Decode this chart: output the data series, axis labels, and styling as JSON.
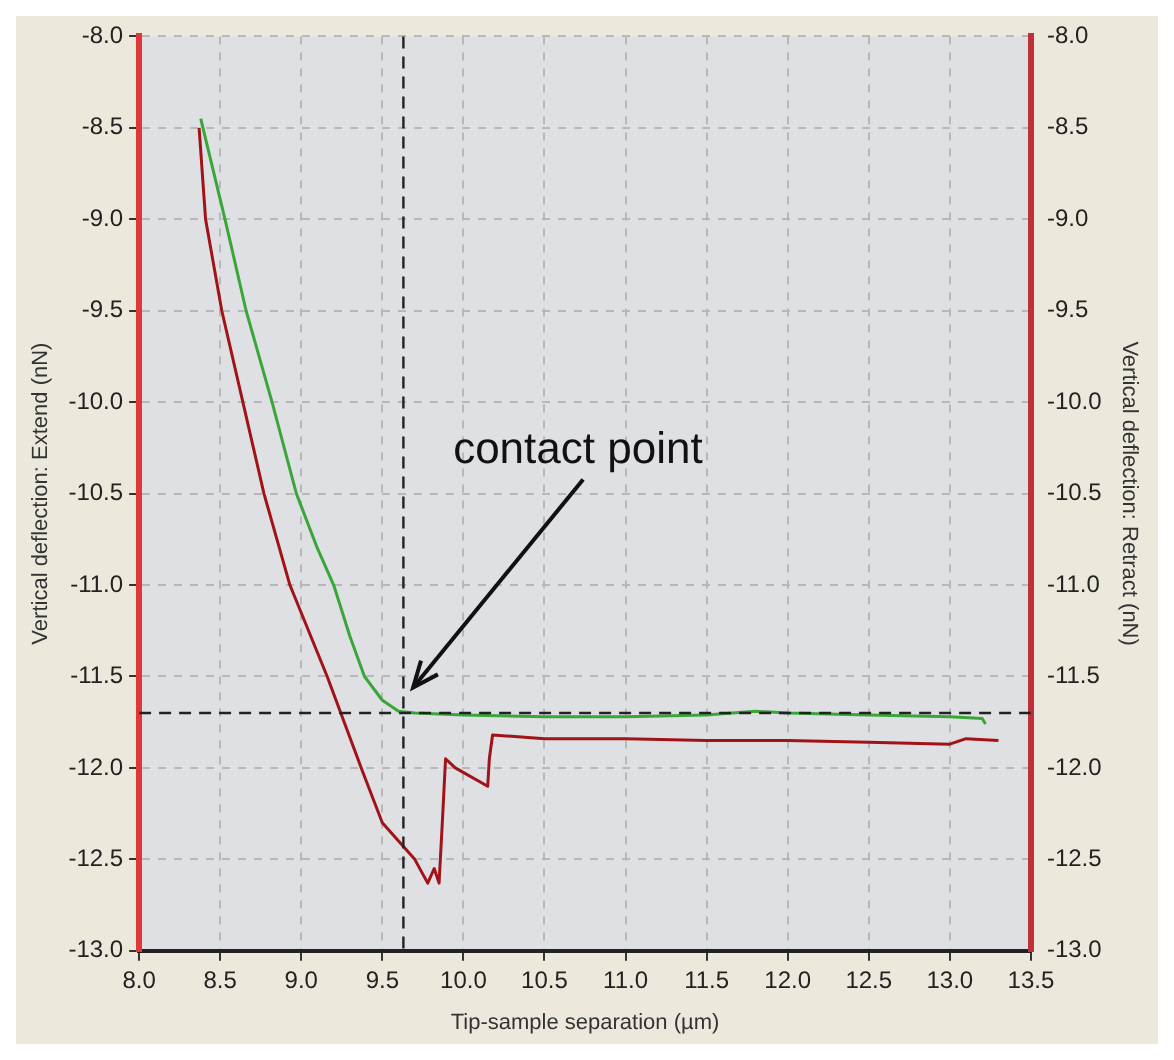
{
  "chart_data": {
    "type": "line",
    "xlabel": "Tip-sample separation (µm)",
    "ylabel": "Vertical deflection: Extend (nN)",
    "y2label": "Vertical deflection: Retract (nN)",
    "series": [
      {
        "color": "#3aa63a",
        "x": [
          8.38,
          8.53,
          8.66,
          8.82,
          8.97,
          9.1,
          9.2,
          9.3,
          9.39,
          9.5,
          9.6,
          9.7,
          10.0,
          10.5,
          11.0,
          11.5,
          11.8,
          12.0,
          12.5,
          13.0,
          13.2,
          13.22
        ],
        "values": [
          -8.45,
          -9.0,
          -9.5,
          -10.0,
          -10.5,
          -10.8,
          -11.0,
          -11.28,
          -11.5,
          -11.63,
          -11.69,
          -11.7,
          -11.71,
          -11.72,
          -11.72,
          -11.71,
          -11.69,
          -11.7,
          -11.71,
          -11.72,
          -11.73,
          -11.76
        ]
      },
      {
        "color": "#a01418",
        "axis": "y2",
        "x": [
          8.37,
          8.41,
          8.51,
          8.64,
          8.77,
          8.93,
          9.16,
          9.37,
          9.5,
          9.6,
          9.7,
          9.78,
          9.82,
          9.85,
          9.87,
          9.89,
          9.95,
          10.15,
          10.16,
          10.18,
          10.5,
          11.0,
          11.5,
          12.0,
          12.5,
          13.0,
          13.1,
          13.3
        ],
        "values": [
          -8.5,
          -9.0,
          -9.5,
          -10.0,
          -10.5,
          -11.0,
          -11.5,
          -12.0,
          -12.3,
          -12.4,
          -12.5,
          -12.63,
          -12.55,
          -12.63,
          -12.3,
          -11.95,
          -12.0,
          -12.1,
          -11.95,
          -11.82,
          -11.84,
          -11.84,
          -11.85,
          -11.85,
          -11.86,
          -11.87,
          -11.84,
          -11.85
        ]
      }
    ],
    "xlim": [
      8.0,
      13.5
    ],
    "xticks": [
      {
        "value": 8,
        "label": "8.0"
      },
      {
        "value": 8.5,
        "label": "8.5"
      },
      {
        "value": 9,
        "label": "9.0"
      },
      {
        "value": 9.5,
        "label": "9.5"
      },
      {
        "value": 10,
        "label": "10.0"
      },
      {
        "value": 10.5,
        "label": "10.5"
      },
      {
        "value": 11,
        "label": "11.0"
      },
      {
        "value": 11.5,
        "label": "11.5"
      },
      {
        "value": 12,
        "label": "12.0"
      },
      {
        "value": 12.5,
        "label": "12.5"
      },
      {
        "value": 13,
        "label": "13.0"
      },
      {
        "value": 13.5,
        "label": "13.5"
      }
    ],
    "ylim": [
      -13.0,
      -8.0
    ],
    "yticks": [
      {
        "value": -13,
        "label": "-13.0"
      },
      -12.5,
      {
        "value": -12,
        "label": "-12.0"
      },
      -11.5,
      {
        "value": -11,
        "label": "-11.0"
      },
      -10.5,
      {
        "value": -10,
        "label": "-10.0"
      },
      -9.5,
      {
        "value": -9,
        "label": "-9.0"
      },
      -8.5,
      {
        "value": -8,
        "label": "-8.0"
      }
    ],
    "y2lim": [
      -13.0,
      -8.0
    ],
    "y2ticks": [
      {
        "value": -13,
        "label": "-13.0"
      },
      -12.5,
      {
        "value": -12,
        "label": "-12.0"
      },
      -11.5,
      {
        "value": -11,
        "label": "-11.0"
      },
      -10.5,
      {
        "value": -10,
        "label": "-10.0"
      },
      -9.5,
      {
        "value": -9,
        "label": "-9.0"
      },
      -8.5,
      {
        "value": -8,
        "label": "-8.0"
      }
    ],
    "ref_lines": [
      {
        "axis": "x",
        "value": 9.63,
        "color": "#222222",
        "line_style": "dashed"
      },
      {
        "axis": "y",
        "value": -11.7,
        "color": "#222222",
        "line_style": "dashed"
      }
    ],
    "annotations": [
      {
        "text": "contact point",
        "x": 9.69,
        "y": -11.56
      }
    ],
    "grid": true,
    "legend": false,
    "marker": "none",
    "line_style": "solid"
  }
}
